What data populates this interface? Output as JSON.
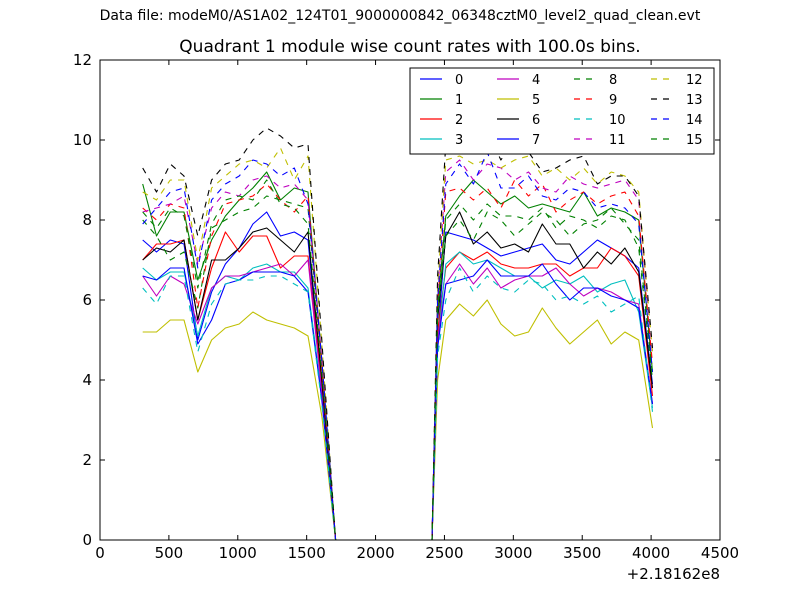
{
  "header": {
    "suptitle": "Data file: modeM0/AS1A02_124T01_9000000842_06348cztM0_level2_quad_clean.evt"
  },
  "chart_data": {
    "type": "line",
    "title": "Quadrant 1 module wise count rates with 100.0s bins.",
    "xlabel": "",
    "ylabel": "",
    "x_offset_label": "+2.18162e8",
    "xlim": [
      0,
      4500
    ],
    "ylim": [
      0,
      12
    ],
    "xticks": [
      0,
      500,
      1000,
      1500,
      2000,
      2500,
      3000,
      3500,
      4000,
      4500
    ],
    "yticks": [
      0,
      2,
      4,
      6,
      8,
      10,
      12
    ],
    "grid": false,
    "legend_position": "top-right",
    "x": [
      310,
      410,
      510,
      610,
      710,
      810,
      910,
      1010,
      1110,
      1210,
      1310,
      1410,
      1510,
      1610,
      1710,
      1810,
      1910,
      2010,
      2110,
      2210,
      2310,
      2410,
      2450,
      2510,
      2610,
      2710,
      2810,
      2910,
      3010,
      3110,
      3210,
      3310,
      3410,
      3510,
      3610,
      3710,
      3810,
      3910,
      4010
    ],
    "series": [
      {
        "name": "0",
        "color": "#0000ff",
        "dash": "solid",
        "values": [
          7.5,
          7.2,
          7.5,
          7.4,
          5.0,
          6.2,
          6.9,
          7.3,
          7.9,
          8.2,
          7.6,
          7.7,
          7.5,
          3.8,
          0,
          0,
          0,
          0,
          0,
          0,
          0,
          0,
          5.0,
          7.7,
          7.6,
          7.5,
          7.3,
          7.1,
          7.2,
          7.3,
          7.4,
          7.0,
          6.9,
          7.2,
          7.5,
          7.3,
          7.1,
          6.8,
          3.9
        ]
      },
      {
        "name": "1",
        "color": "#008000",
        "dash": "solid",
        "values": [
          8.9,
          7.6,
          8.2,
          8.2,
          6.5,
          7.5,
          8.1,
          8.5,
          8.8,
          9.2,
          8.5,
          8.8,
          8.7,
          4.5,
          0,
          0,
          0,
          0,
          0,
          0,
          0,
          0,
          5.8,
          8.1,
          8.6,
          9.0,
          8.7,
          8.4,
          8.6,
          8.3,
          8.4,
          8.3,
          8.2,
          8.7,
          8.1,
          8.3,
          8.2,
          8.0,
          4.2
        ]
      },
      {
        "name": "2",
        "color": "#ff0000",
        "dash": "solid",
        "values": [
          7.0,
          7.4,
          7.4,
          7.5,
          5.5,
          6.8,
          7.7,
          7.2,
          7.6,
          7.6,
          6.8,
          7.1,
          7.1,
          3.9,
          0,
          0,
          0,
          0,
          0,
          0,
          0,
          0,
          5.2,
          6.8,
          7.2,
          7.0,
          7.2,
          6.9,
          6.8,
          6.8,
          6.9,
          6.9,
          6.6,
          6.8,
          6.8,
          7.3,
          7.1,
          6.6,
          3.6
        ]
      },
      {
        "name": "3",
        "color": "#00bfbf",
        "dash": "solid",
        "values": [
          6.8,
          6.5,
          6.7,
          6.7,
          5.1,
          6.3,
          6.6,
          6.5,
          6.8,
          6.9,
          6.7,
          6.7,
          6.3,
          3.6,
          0,
          0,
          0,
          0,
          0,
          0,
          0,
          0,
          4.9,
          6.9,
          7.2,
          6.9,
          7.0,
          6.8,
          6.6,
          6.6,
          6.3,
          6.5,
          6.4,
          6.6,
          6.2,
          6.4,
          6.5,
          5.7,
          3.3
        ]
      },
      {
        "name": "4",
        "color": "#bf00bf",
        "dash": "solid",
        "values": [
          6.6,
          6.1,
          6.6,
          6.4,
          5.4,
          6.3,
          6.6,
          6.6,
          6.7,
          6.8,
          6.9,
          6.6,
          7.0,
          3.7,
          0,
          0,
          0,
          0,
          0,
          0,
          0,
          0,
          5.0,
          6.4,
          6.9,
          6.4,
          6.8,
          6.3,
          6.5,
          6.6,
          6.6,
          6.8,
          6.4,
          6.1,
          6.3,
          6.2,
          6.0,
          5.9,
          3.4
        ]
      },
      {
        "name": "5",
        "color": "#bfbf00",
        "dash": "solid",
        "values": [
          5.2,
          5.2,
          5.5,
          5.5,
          4.2,
          5.0,
          5.3,
          5.4,
          5.7,
          5.5,
          5.4,
          5.3,
          5.1,
          3.1,
          0,
          0,
          0,
          0,
          0,
          0,
          0,
          0,
          4.0,
          5.5,
          5.9,
          5.6,
          6.0,
          5.4,
          5.1,
          5.2,
          5.8,
          5.3,
          4.9,
          5.2,
          5.5,
          4.9,
          5.2,
          5.0,
          2.8
        ]
      },
      {
        "name": "6",
        "color": "#000000",
        "dash": "solid",
        "values": [
          7.0,
          7.3,
          7.2,
          7.5,
          5.5,
          7.0,
          7.0,
          7.3,
          7.7,
          7.8,
          7.5,
          7.2,
          7.7,
          4.0,
          0,
          0,
          0,
          0,
          0,
          0,
          0,
          0,
          5.5,
          7.6,
          8.2,
          7.4,
          7.7,
          7.3,
          7.4,
          7.2,
          7.9,
          7.4,
          7.4,
          6.8,
          7.2,
          6.9,
          7.3,
          6.7,
          3.8
        ]
      },
      {
        "name": "7",
        "color": "#0000ff",
        "dash": "solid",
        "values": [
          6.6,
          6.5,
          6.8,
          6.8,
          4.9,
          5.5,
          6.4,
          6.5,
          6.7,
          6.7,
          6.7,
          6.6,
          6.2,
          3.5,
          0,
          0,
          0,
          0,
          0,
          0,
          0,
          0,
          4.8,
          6.4,
          6.5,
          6.6,
          7.0,
          6.6,
          6.6,
          6.6,
          6.9,
          6.4,
          6.0,
          6.3,
          6.3,
          6.1,
          6.0,
          5.8,
          3.4
        ]
      },
      {
        "name": "8",
        "color": "#008000",
        "dash": "dashed",
        "values": [
          8.0,
          7.6,
          7.0,
          7.2,
          5.8,
          7.8,
          8.0,
          8.2,
          8.3,
          8.6,
          8.5,
          8.4,
          8.3,
          4.3,
          0,
          0,
          0,
          0,
          0,
          0,
          0,
          0,
          5.6,
          7.6,
          8.0,
          7.5,
          8.2,
          8.0,
          7.6,
          7.9,
          8.2,
          8.0,
          7.6,
          7.9,
          8.0,
          8.3,
          7.9,
          7.5,
          4.1
        ]
      },
      {
        "name": "9",
        "color": "#ff0000",
        "dash": "dashed",
        "values": [
          8.3,
          8.0,
          8.4,
          8.3,
          5.8,
          7.6,
          8.4,
          8.5,
          8.6,
          8.9,
          8.5,
          8.2,
          8.6,
          4.4,
          0,
          0,
          0,
          0,
          0,
          0,
          0,
          0,
          5.9,
          8.7,
          8.8,
          8.5,
          8.8,
          8.3,
          9.0,
          8.6,
          8.9,
          8.2,
          8.5,
          8.7,
          8.4,
          8.6,
          8.7,
          8.1,
          4.4
        ]
      },
      {
        "name": "10",
        "color": "#00bfbf",
        "dash": "dashed",
        "values": [
          6.3,
          5.9,
          6.6,
          6.6,
          4.7,
          5.9,
          6.4,
          6.5,
          6.5,
          6.6,
          6.6,
          6.4,
          6.2,
          3.4,
          0,
          0,
          0,
          0,
          0,
          0,
          0,
          0,
          4.6,
          6.0,
          6.8,
          6.2,
          6.6,
          6.3,
          6.2,
          6.5,
          6.4,
          6.0,
          6.1,
          5.9,
          6.1,
          5.7,
          5.9,
          6.1,
          3.2
        ]
      },
      {
        "name": "11",
        "color": "#bf00bf",
        "dash": "dashed",
        "values": [
          8.2,
          8.3,
          8.4,
          8.6,
          6.9,
          8.3,
          8.7,
          8.6,
          9.0,
          9.1,
          8.8,
          8.9,
          8.5,
          4.5,
          0,
          0,
          0,
          0,
          0,
          0,
          0,
          0,
          6.1,
          9.2,
          9.5,
          9.0,
          9.4,
          9.3,
          9.0,
          9.2,
          8.8,
          8.7,
          9.1,
          8.9,
          8.8,
          8.9,
          9.0,
          8.5,
          4.6
        ]
      },
      {
        "name": "12",
        "color": "#bfbf00",
        "dash": "dashed",
        "values": [
          8.7,
          8.5,
          9.0,
          9.0,
          7.0,
          8.8,
          9.1,
          9.4,
          9.5,
          9.3,
          9.8,
          9.0,
          9.6,
          4.9,
          0,
          0,
          0,
          0,
          0,
          0,
          0,
          0,
          6.3,
          9.5,
          9.6,
          9.4,
          9.5,
          9.3,
          9.5,
          9.6,
          9.1,
          9.3,
          9.0,
          9.3,
          8.9,
          9.2,
          9.1,
          8.7,
          4.7
        ]
      },
      {
        "name": "13",
        "color": "#000000",
        "dash": "dashed",
        "values": [
          9.3,
          8.7,
          9.4,
          9.1,
          7.6,
          9.0,
          9.4,
          9.5,
          10.0,
          10.3,
          10.1,
          9.8,
          9.9,
          5.0,
          0,
          0,
          0,
          0,
          0,
          0,
          0,
          0,
          6.6,
          9.9,
          9.9,
          10.1,
          10.2,
          9.5,
          10.0,
          9.7,
          9.2,
          9.3,
          9.5,
          9.6,
          8.9,
          9.1,
          9.1,
          8.6,
          4.8
        ]
      },
      {
        "name": "14",
        "color": "#0000ff",
        "dash": "dashed",
        "values": [
          7.9,
          8.3,
          8.7,
          8.8,
          6.8,
          8.5,
          8.9,
          9.1,
          9.5,
          9.4,
          9.1,
          9.3,
          8.4,
          4.5,
          0,
          0,
          0,
          0,
          0,
          0,
          0,
          0,
          6.0,
          8.9,
          9.4,
          8.9,
          9.7,
          8.8,
          8.8,
          9.1,
          8.6,
          8.5,
          8.8,
          8.7,
          8.3,
          8.4,
          8.3,
          7.9,
          4.2
        ]
      },
      {
        "name": "15",
        "color": "#008000",
        "dash": "dashed",
        "values": [
          8.2,
          7.8,
          8.3,
          8.1,
          6.3,
          7.9,
          8.5,
          8.6,
          8.5,
          9.0,
          8.4,
          8.3,
          7.9,
          4.2,
          0,
          0,
          0,
          0,
          0,
          0,
          0,
          0,
          5.7,
          8.0,
          8.4,
          8.0,
          8.4,
          8.1,
          8.1,
          8.0,
          8.3,
          7.8,
          8.1,
          8.0,
          7.8,
          8.1,
          8.0,
          7.3,
          4.0
        ]
      }
    ]
  }
}
